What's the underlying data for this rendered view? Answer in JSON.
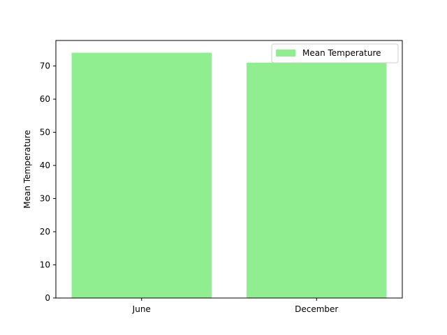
{
  "chart_data": {
    "type": "bar",
    "categories": [
      "June",
      "December"
    ],
    "series": [
      {
        "name": "Mean Temperature",
        "values": [
          74,
          71
        ]
      }
    ],
    "title": "",
    "xlabel": "",
    "ylabel": "Mean Temperature",
    "ylim": [
      0,
      77.7
    ],
    "yticks": [
      0,
      10,
      20,
      30,
      40,
      50,
      60,
      70
    ],
    "grid": false,
    "legend_position": "top-right",
    "bar_color": "#90ee90"
  }
}
